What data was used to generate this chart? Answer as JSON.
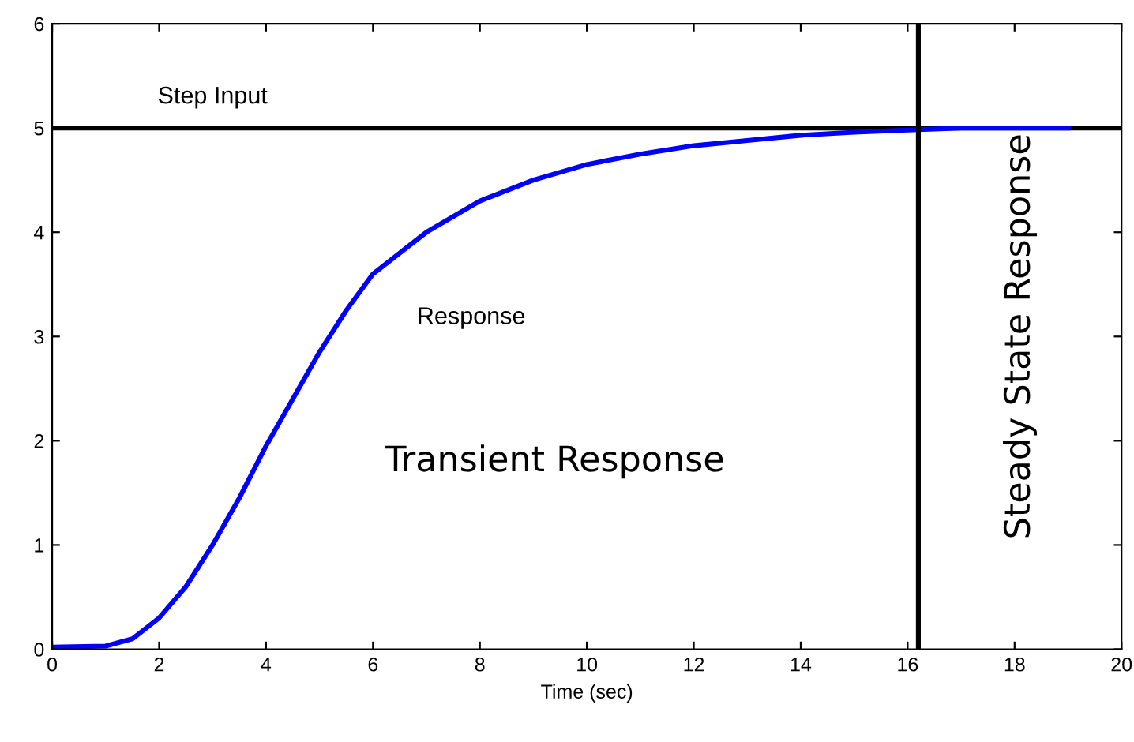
{
  "chart_data": {
    "type": "line",
    "xlabel": "Time (sec)",
    "xlim": [
      0,
      20
    ],
    "ylim": [
      0,
      6
    ],
    "xticks": [
      0,
      2,
      4,
      6,
      8,
      10,
      12,
      14,
      16,
      18,
      20
    ],
    "yticks": [
      0,
      1,
      2,
      3,
      4,
      5,
      6
    ],
    "grid": false,
    "legend": false,
    "marker": "none",
    "line_style": "solid",
    "series": [
      {
        "color": "#000000",
        "x": [
          0,
          20
        ],
        "values": [
          5,
          5
        ]
      },
      {
        "color": "#0000ff",
        "x": [
          0,
          1,
          1.5,
          2,
          2.5,
          3,
          3.5,
          4,
          4.5,
          5,
          5.5,
          6,
          7,
          8,
          9,
          10,
          11,
          12,
          13,
          14,
          15,
          16,
          17,
          18,
          19
        ],
        "values": [
          0.02,
          0.03,
          0.1,
          0.3,
          0.6,
          1.0,
          1.45,
          1.95,
          2.4,
          2.85,
          3.25,
          3.6,
          4.0,
          4.3,
          4.5,
          4.65,
          4.75,
          4.83,
          4.88,
          4.93,
          4.96,
          4.98,
          5.0,
          5.0,
          5.0
        ]
      }
    ],
    "ref_lines": [
      {
        "axis": "x",
        "value": 16.2,
        "label": null,
        "color": "#000000"
      }
    ],
    "annotations": [
      {
        "text": "Step Input",
        "x": 3,
        "y": 5
      },
      {
        "text": "Response",
        "x": 6,
        "y": 3.6
      },
      "Transient Response",
      "Steady State Response"
    ]
  }
}
